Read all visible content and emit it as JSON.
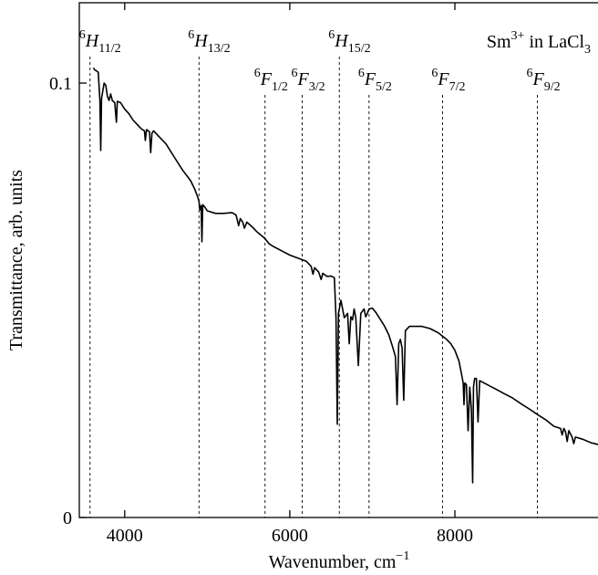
{
  "chart_data": {
    "type": "line",
    "xlabel": "Wavenumber, cm",
    "xlabel_sup": "−1",
    "ylabel": "Transmittance, arb. units",
    "annotation": {
      "base": "Sm",
      "sup": "3+",
      "text": " in LaCl",
      "sub": "3"
    },
    "xlim": [
      3450,
      9800
    ],
    "ylim": [
      0,
      0.1185
    ],
    "x_ticks": [
      4000,
      6000,
      8000
    ],
    "y_ticks": [
      {
        "value": 0,
        "label": "0"
      },
      {
        "value": 0.1,
        "label": "0.1"
      }
    ],
    "levels": [
      {
        "sup": "6",
        "letter": "H",
        "sub": "11/2",
        "x": 3580,
        "row": "upper"
      },
      {
        "sup": "6",
        "letter": "H",
        "sub": "13/2",
        "x": 4900,
        "row": "upper"
      },
      {
        "sup": "6",
        "letter": "F",
        "sub": "1/2",
        "x": 5700,
        "row": "lower"
      },
      {
        "sup": "6",
        "letter": "F",
        "sub": "3/2",
        "x": 6150,
        "row": "lower"
      },
      {
        "sup": "6",
        "letter": "H",
        "sub": "15/2",
        "x": 6600,
        "row": "upper"
      },
      {
        "sup": "6",
        "letter": "F",
        "sub": "5/2",
        "x": 6960,
        "row": "lower"
      },
      {
        "sup": "6",
        "letter": "F",
        "sub": "7/2",
        "x": 7850,
        "row": "lower"
      },
      {
        "sup": "6",
        "letter": "F",
        "sub": "9/2",
        "x": 9000,
        "row": "lower"
      }
    ],
    "series": [
      {
        "color": "#000000",
        "points": [
          [
            3620,
            0.1035
          ],
          [
            3640,
            0.103
          ],
          [
            3660,
            0.1028
          ],
          [
            3680,
            0.1025
          ],
          [
            3700,
            0.096
          ],
          [
            3710,
            0.0845
          ],
          [
            3720,
            0.0965
          ],
          [
            3750,
            0.1
          ],
          [
            3770,
            0.0995
          ],
          [
            3790,
            0.097
          ],
          [
            3810,
            0.096
          ],
          [
            3830,
            0.0975
          ],
          [
            3850,
            0.096
          ],
          [
            3880,
            0.0955
          ],
          [
            3900,
            0.091
          ],
          [
            3910,
            0.0958
          ],
          [
            3950,
            0.0955
          ],
          [
            4000,
            0.094
          ],
          [
            4050,
            0.093
          ],
          [
            4100,
            0.0915
          ],
          [
            4150,
            0.0905
          ],
          [
            4200,
            0.0895
          ],
          [
            4240,
            0.089
          ],
          [
            4250,
            0.0868
          ],
          [
            4265,
            0.0893
          ],
          [
            4300,
            0.0888
          ],
          [
            4315,
            0.084
          ],
          [
            4330,
            0.0885
          ],
          [
            4350,
            0.089
          ],
          [
            4400,
            0.088
          ],
          [
            4500,
            0.086
          ],
          [
            4600,
            0.083
          ],
          [
            4700,
            0.08
          ],
          [
            4800,
            0.0775
          ],
          [
            4850,
            0.0755
          ],
          [
            4880,
            0.074
          ],
          [
            4900,
            0.0728
          ],
          [
            4910,
            0.0708
          ],
          [
            4925,
            0.0718
          ],
          [
            4935,
            0.0635
          ],
          [
            4945,
            0.072
          ],
          [
            4970,
            0.0715
          ],
          [
            5000,
            0.0706
          ],
          [
            5100,
            0.07
          ],
          [
            5200,
            0.07
          ],
          [
            5300,
            0.0702
          ],
          [
            5350,
            0.0696
          ],
          [
            5380,
            0.0672
          ],
          [
            5400,
            0.0688
          ],
          [
            5430,
            0.068
          ],
          [
            5450,
            0.0666
          ],
          [
            5480,
            0.068
          ],
          [
            5550,
            0.0668
          ],
          [
            5600,
            0.0658
          ],
          [
            5700,
            0.0642
          ],
          [
            5750,
            0.063
          ],
          [
            5800,
            0.0624
          ],
          [
            5900,
            0.0614
          ],
          [
            6000,
            0.0604
          ],
          [
            6100,
            0.0597
          ],
          [
            6200,
            0.059
          ],
          [
            6260,
            0.0578
          ],
          [
            6280,
            0.056
          ],
          [
            6300,
            0.0575
          ],
          [
            6350,
            0.0565
          ],
          [
            6380,
            0.0548
          ],
          [
            6400,
            0.0562
          ],
          [
            6450,
            0.0555
          ],
          [
            6500,
            0.0556
          ],
          [
            6540,
            0.0552
          ],
          [
            6560,
            0.046
          ],
          [
            6575,
            0.0215
          ],
          [
            6590,
            0.047
          ],
          [
            6620,
            0.05
          ],
          [
            6660,
            0.046
          ],
          [
            6700,
            0.047
          ],
          [
            6720,
            0.04
          ],
          [
            6740,
            0.0462
          ],
          [
            6760,
            0.0455
          ],
          [
            6780,
            0.048
          ],
          [
            6800,
            0.046
          ],
          [
            6830,
            0.035
          ],
          [
            6860,
            0.047
          ],
          [
            6900,
            0.048
          ],
          [
            6920,
            0.0462
          ],
          [
            6940,
            0.047
          ],
          [
            6960,
            0.048
          ],
          [
            7000,
            0.0482
          ],
          [
            7050,
            0.047
          ],
          [
            7100,
            0.0455
          ],
          [
            7150,
            0.044
          ],
          [
            7200,
            0.042
          ],
          [
            7250,
            0.039
          ],
          [
            7280,
            0.037
          ],
          [
            7300,
            0.026
          ],
          [
            7320,
            0.04
          ],
          [
            7340,
            0.041
          ],
          [
            7360,
            0.039
          ],
          [
            7380,
            0.027
          ],
          [
            7400,
            0.043
          ],
          [
            7450,
            0.044
          ],
          [
            7500,
            0.044
          ],
          [
            7600,
            0.044
          ],
          [
            7700,
            0.0435
          ],
          [
            7800,
            0.0425
          ],
          [
            7900,
            0.041
          ],
          [
            7950,
            0.04
          ],
          [
            8000,
            0.0385
          ],
          [
            8050,
            0.036
          ],
          [
            8080,
            0.033
          ],
          [
            8100,
            0.031
          ],
          [
            8110,
            0.026
          ],
          [
            8120,
            0.031
          ],
          [
            8140,
            0.0305
          ],
          [
            8160,
            0.02
          ],
          [
            8180,
            0.03
          ],
          [
            8200,
            0.025
          ],
          [
            8215,
            0.008
          ],
          [
            8225,
            0.03
          ],
          [
            8240,
            0.032
          ],
          [
            8260,
            0.032
          ],
          [
            8280,
            0.022
          ],
          [
            8300,
            0.0315
          ],
          [
            8400,
            0.0305
          ],
          [
            8500,
            0.0295
          ],
          [
            8600,
            0.0285
          ],
          [
            8700,
            0.0275
          ],
          [
            8800,
            0.0262
          ],
          [
            8900,
            0.025
          ],
          [
            9000,
            0.0237
          ],
          [
            9100,
            0.0225
          ],
          [
            9200,
            0.021
          ],
          [
            9280,
            0.0205
          ],
          [
            9300,
            0.019
          ],
          [
            9320,
            0.0205
          ],
          [
            9340,
            0.0198
          ],
          [
            9360,
            0.0175
          ],
          [
            9380,
            0.02
          ],
          [
            9420,
            0.0185
          ],
          [
            9440,
            0.017
          ],
          [
            9460,
            0.0185
          ],
          [
            9550,
            0.018
          ],
          [
            9650,
            0.0172
          ],
          [
            9800,
            0.0165
          ]
        ]
      }
    ]
  }
}
